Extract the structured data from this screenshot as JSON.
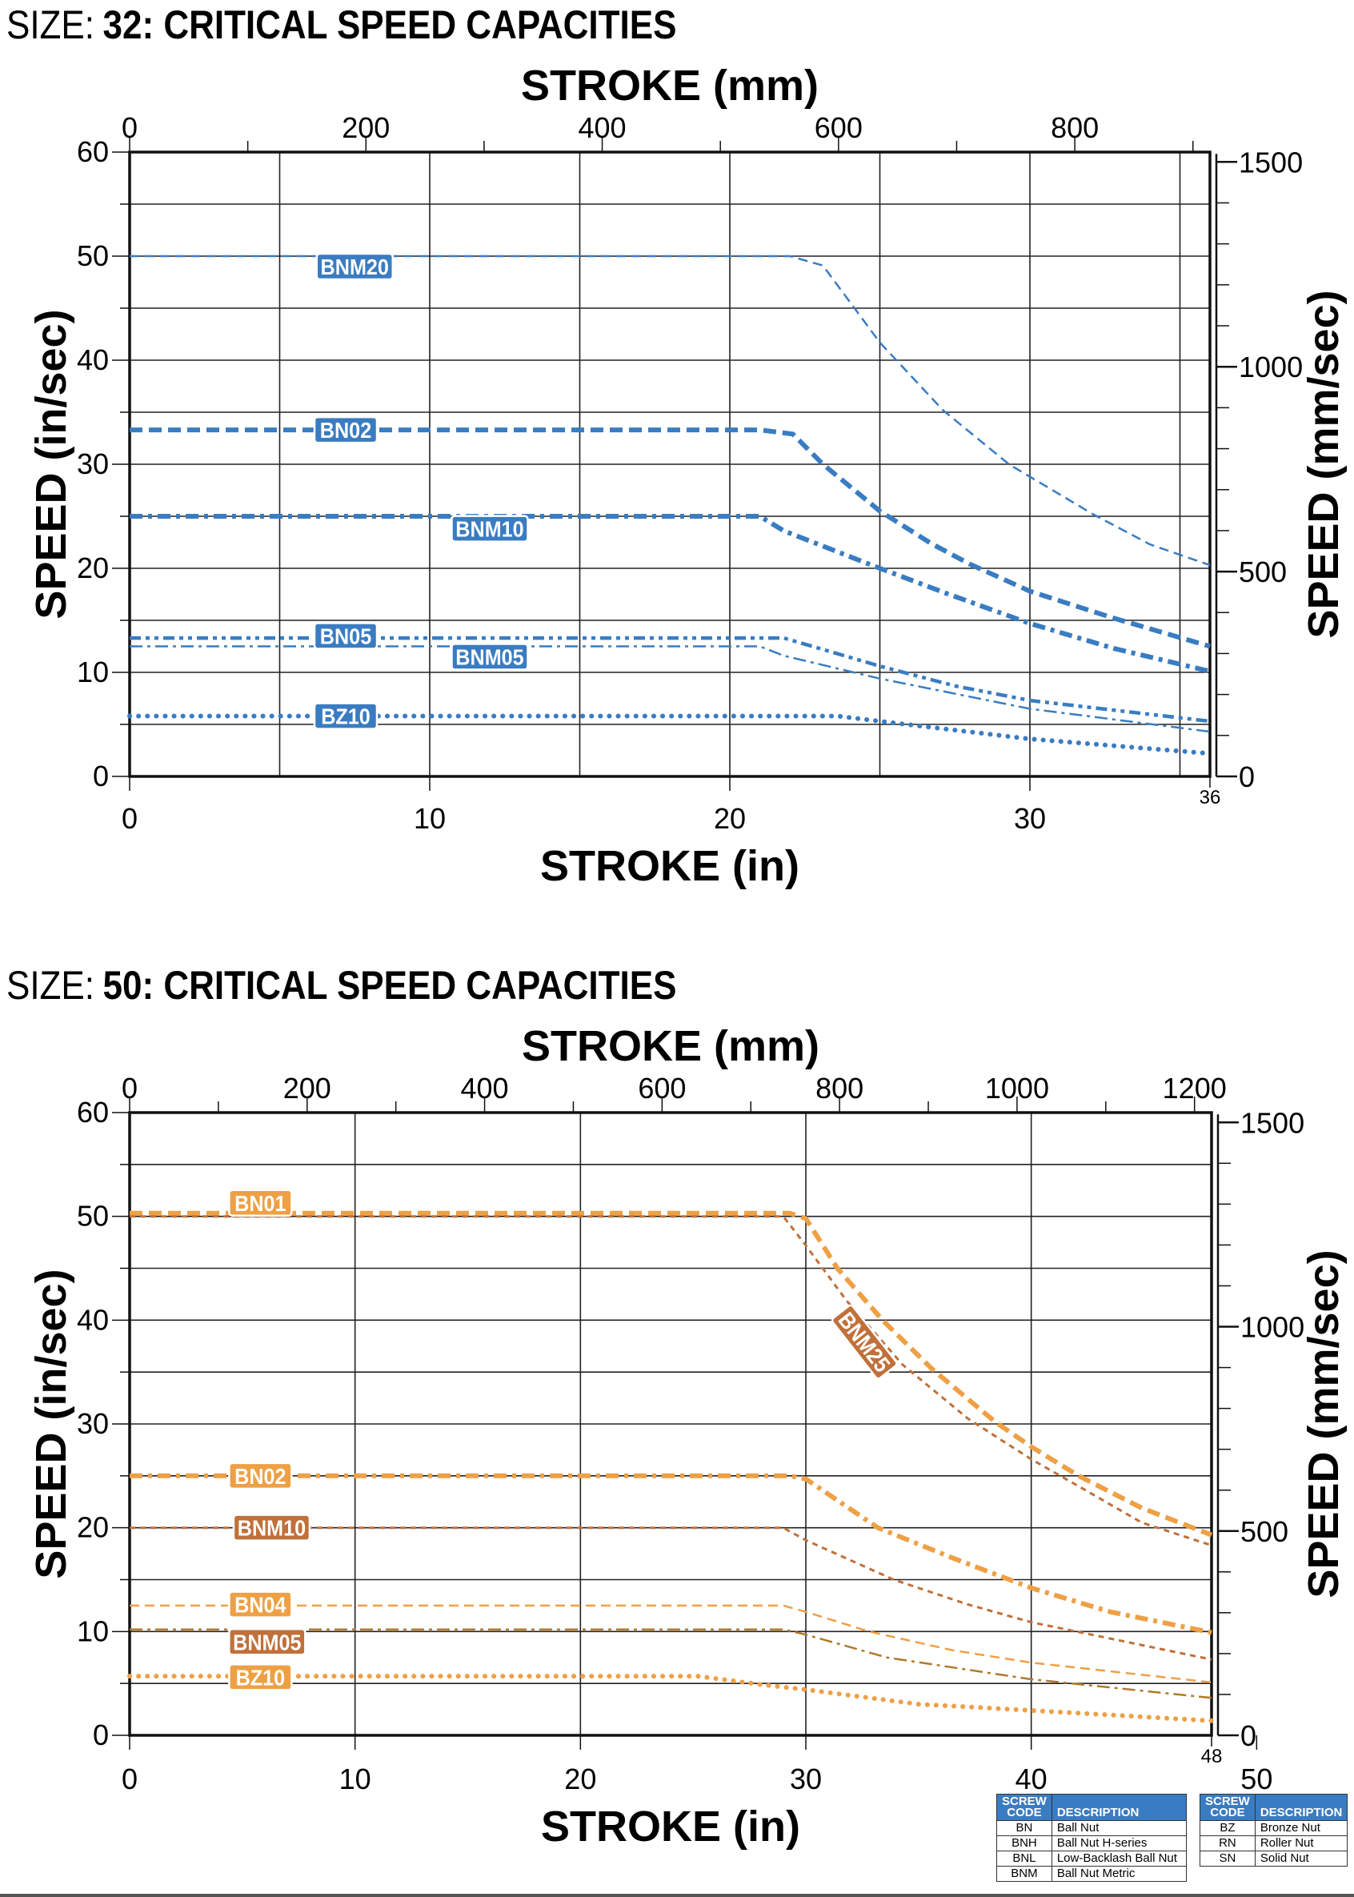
{
  "chart_data": [
    {
      "type": "line",
      "title_prefix": "SIZE:",
      "title": "32: CRITICAL SPEED CAPACITIES",
      "xlabel": "STROKE (in)",
      "x2label": "STROKE (mm)",
      "ylabel": "SPEED (in/sec)",
      "y2label": "SPEED (mm/sec)",
      "xlim": [
        0,
        36
      ],
      "ylim": [
        0,
        60
      ],
      "xticks": [
        "0",
        "10",
        "20",
        "30"
      ],
      "xtick_end": "36",
      "yticks": [
        "0",
        "10",
        "20",
        "30",
        "40",
        "50",
        "60"
      ],
      "x2ticks": [
        "0",
        "200",
        "400",
        "600",
        "800"
      ],
      "y2ticks": [
        "0",
        "500",
        "1000",
        "1500"
      ],
      "xgrid_step": 5,
      "ygrid_step": 5,
      "grid": true,
      "series": [
        {
          "name": "BNM20",
          "color": "#3a7cc1",
          "style": "dashed",
          "x": [
            0,
            22,
            23.1,
            25,
            27.1,
            29.3,
            32.1,
            34,
            36
          ],
          "y": [
            50,
            50,
            49.1,
            41.7,
            35.2,
            30,
            25.2,
            22.3,
            20.3
          ]
        },
        {
          "name": "BN02",
          "color": "#3a7cc1",
          "style": "thick-dashed",
          "x": [
            0,
            21,
            22.1,
            23.1,
            25,
            26.7,
            28,
            30,
            32.8,
            36
          ],
          "y": [
            33.3,
            33.3,
            32.9,
            30,
            25.5,
            22.4,
            20.4,
            17.8,
            15.2,
            12.5
          ]
        },
        {
          "name": "BNM10",
          "color": "#3a7cc1",
          "style": "thick-dash-dot",
          "x": [
            0,
            21,
            21.8,
            25,
            27.3,
            30,
            32.8,
            36
          ],
          "y": [
            25,
            25,
            23.6,
            20,
            17.5,
            14.7,
            12.3,
            10.1
          ]
        },
        {
          "name": "BN05",
          "color": "#3a7cc1",
          "style": "dash-dot-dot",
          "x": [
            0,
            21.8,
            25,
            27.5,
            30,
            36
          ],
          "y": [
            13.3,
            13.3,
            10.6,
            8.7,
            7.3,
            5.3
          ]
        },
        {
          "name": "BNM05",
          "color": "#3a7cc1",
          "style": "thin-dash-dot",
          "x": [
            0,
            21,
            21.8,
            25,
            30,
            36
          ],
          "y": [
            12.5,
            12.5,
            11.6,
            9.4,
            6.5,
            4.3
          ]
        },
        {
          "name": "BZ10",
          "color": "#3a7cc1",
          "style": "dotted",
          "x": [
            0,
            23.6,
            25,
            30,
            36
          ],
          "y": [
            5.8,
            5.8,
            5.3,
            3.6,
            2.2
          ]
        }
      ]
    },
    {
      "type": "line",
      "title_prefix": "SIZE:",
      "title": "50: CRITICAL SPEED CAPACITIES",
      "xlabel": "STROKE (in)",
      "x2label": "STROKE (mm)",
      "ylabel": "SPEED (in/sec)",
      "y2label": "SPEED (mm/sec)",
      "xlim": [
        0,
        48
      ],
      "ylim": [
        0,
        60
      ],
      "xticks": [
        "0",
        "10",
        "20",
        "30",
        "40",
        "50"
      ],
      "xtick_end": "48",
      "yticks": [
        "0",
        "10",
        "20",
        "30",
        "40",
        "50",
        "60"
      ],
      "x2ticks": [
        "0",
        "200",
        "400",
        "600",
        "800",
        "1000",
        "1200"
      ],
      "y2ticks": [
        "0",
        "500",
        "1000",
        "1500"
      ],
      "xgrid_step": 10,
      "ygrid_step": 5,
      "grid": true,
      "series": [
        {
          "name": "BN01",
          "color": "#eea045",
          "label_color": "#eea045",
          "style": "thick-dashed",
          "x": [
            0,
            29.3,
            30,
            31.4,
            33.4,
            35.6,
            38.4,
            40,
            42.1,
            44.9,
            48
          ],
          "y": [
            50.3,
            50.3,
            49.8,
            45,
            40,
            35.3,
            30.2,
            27.8,
            25,
            21.9,
            19.3
          ]
        },
        {
          "name": "BNM25",
          "color": "#c0703a",
          "label_color": "#c0703a",
          "style": "short-dashed",
          "x": [
            0,
            29,
            30,
            31.8,
            34.3,
            37.2,
            40,
            42.1,
            44.9,
            48
          ],
          "y": [
            50,
            50,
            47.2,
            41.9,
            35.7,
            30.5,
            26.6,
            24,
            20.5,
            18.3
          ]
        },
        {
          "name": "BN02",
          "color": "#eea045",
          "label_color": "#eea045",
          "style": "thick-dash-dot",
          "x": [
            0,
            29.3,
            30,
            33.2,
            36.5,
            40,
            43.5,
            48
          ],
          "y": [
            25,
            25,
            24.7,
            20,
            17.1,
            14.2,
            11.9,
            9.9
          ]
        },
        {
          "name": "BNM10",
          "color": "#c0703a",
          "label_color": "#c0703a",
          "style": "short-dashed",
          "x": [
            0,
            29,
            30,
            33.9,
            37.2,
            40,
            48
          ],
          "y": [
            20,
            20,
            18.8,
            15,
            12.6,
            10.9,
            7.3
          ]
        },
        {
          "name": "BN04",
          "color": "#eea045",
          "label_color": "#eea045",
          "style": "dashed",
          "x": [
            0,
            29,
            30,
            32.8,
            36.5,
            40,
            48
          ],
          "y": [
            12.5,
            12.5,
            11.9,
            10,
            8.2,
            7,
            5.1
          ]
        },
        {
          "name": "BNM05",
          "color": "#b07a2a",
          "label_color": "#c0703a",
          "style": "thin-dash-dot",
          "x": [
            0,
            29,
            30,
            33.6,
            40,
            48
          ],
          "y": [
            10.2,
            10.2,
            9.7,
            7.5,
            5.4,
            3.6
          ]
        },
        {
          "name": "BZ10",
          "color": "#eea045",
          "label_color": "#eea045",
          "style": "dotted",
          "x": [
            0,
            25.2,
            28,
            30,
            35,
            40,
            48
          ],
          "y": [
            5.7,
            5.7,
            4.9,
            4.4,
            3,
            2.4,
            1.4
          ]
        }
      ]
    }
  ],
  "legend_tables": [
    {
      "headers": [
        "SCREW CODE",
        "DESCRIPTION"
      ],
      "rows": [
        [
          "BN",
          "Ball Nut"
        ],
        [
          "BNH",
          "Ball Nut H-series"
        ],
        [
          "BNL",
          "Low-Backlash Ball Nut"
        ],
        [
          "BNM",
          "Ball Nut Metric"
        ]
      ]
    },
    {
      "headers": [
        "SCREW CODE",
        "DESCRIPTION"
      ],
      "rows": [
        [
          "BZ",
          "Bronze Nut"
        ],
        [
          "RN",
          "Roller Nut"
        ],
        [
          "SN",
          "Solid Nut"
        ]
      ]
    }
  ],
  "colors": {
    "header_blue": "#3a7cc1",
    "size32_series": "#3a7cc1",
    "size50_bn": "#eea045",
    "size50_bnm": "#c0703a"
  }
}
